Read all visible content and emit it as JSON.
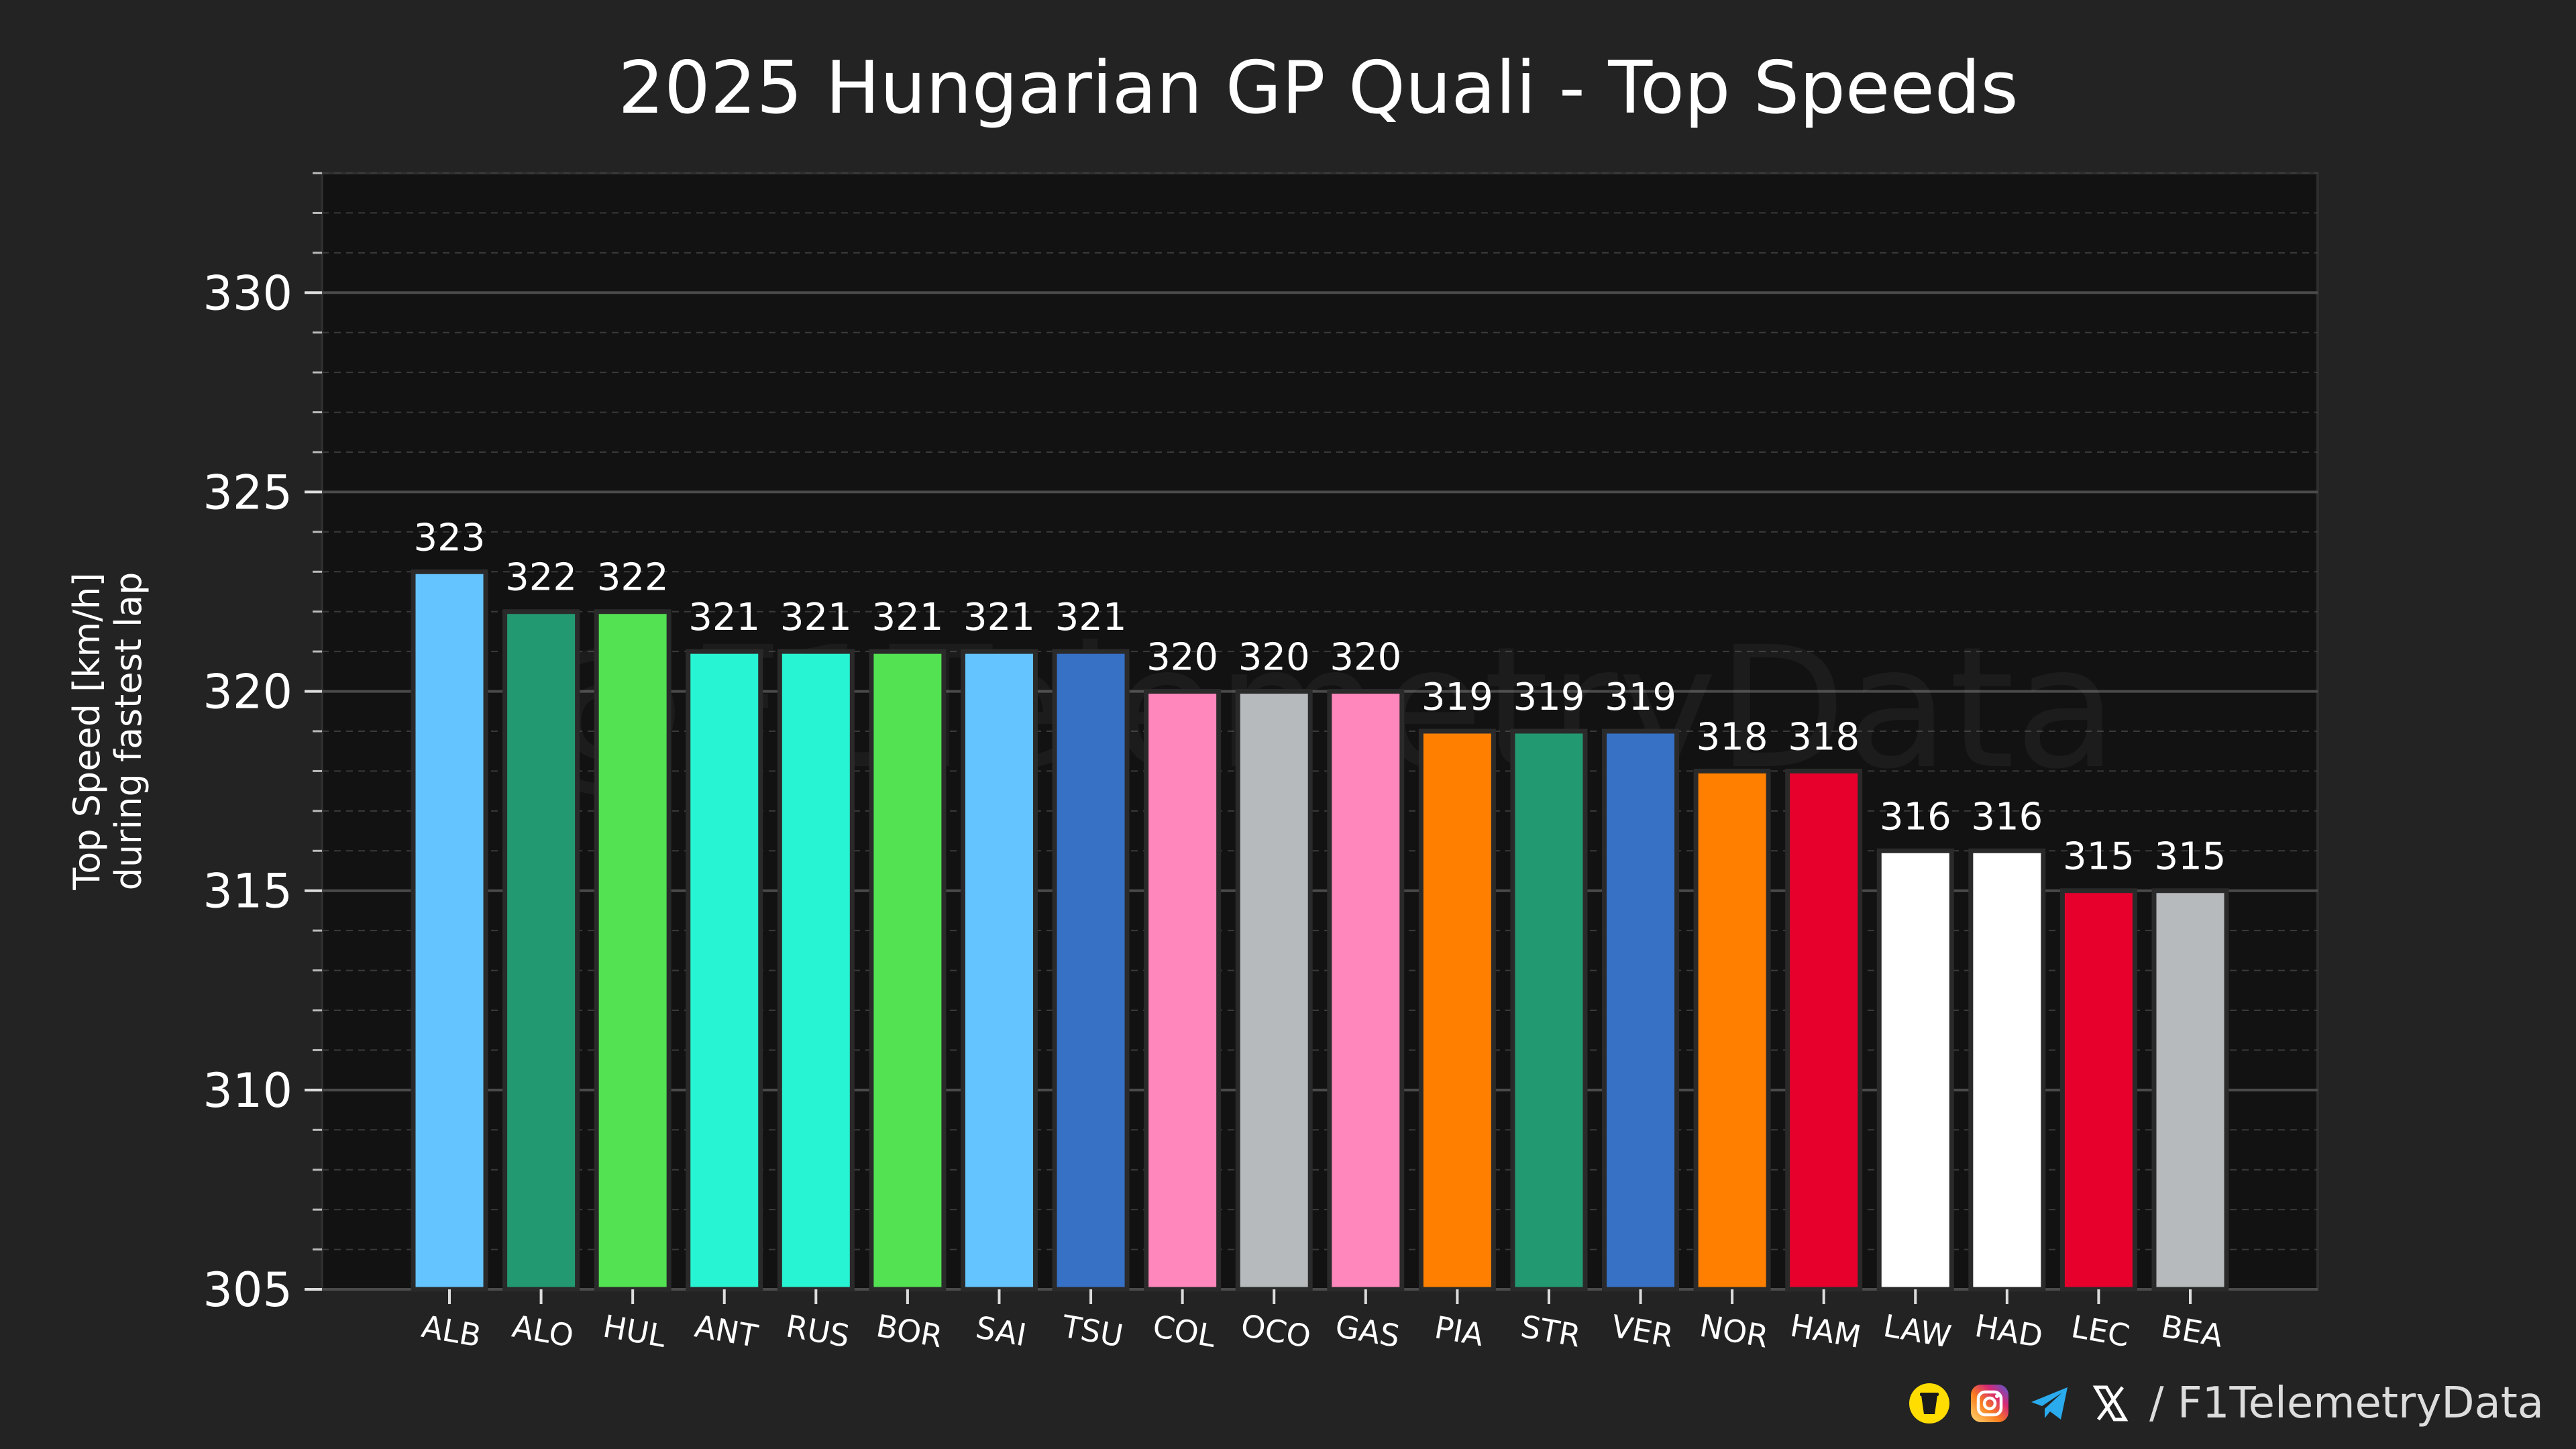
{
  "chart_data": {
    "type": "bar",
    "title": "2025 Hungarian GP Quali - Top Speeds",
    "ylabel_line1": "Top Speed [km/h]",
    "ylabel_line2": "during fastest lap",
    "xlabel": "",
    "ylim": [
      305,
      333
    ],
    "yticks": [
      305,
      310,
      315,
      320,
      325,
      330
    ],
    "grid": true,
    "categories": [
      "ALB",
      "ALO",
      "HUL",
      "ANT",
      "RUS",
      "BOR",
      "SAI",
      "TSU",
      "COL",
      "OCO",
      "GAS",
      "PIA",
      "STR",
      "VER",
      "NOR",
      "HAM",
      "LAW",
      "HAD",
      "LEC",
      "BEA"
    ],
    "values": [
      323,
      322,
      322,
      321,
      321,
      321,
      321,
      321,
      320,
      320,
      320,
      319,
      319,
      319,
      318,
      318,
      316,
      316,
      315,
      315
    ],
    "colors": [
      "#64C4FF",
      "#229971",
      "#52E252",
      "#27F4D2",
      "#27F4D2",
      "#52E252",
      "#64C4FF",
      "#3671C6",
      "#FF87BC",
      "#B6BABD",
      "#FF87BC",
      "#FF8000",
      "#229971",
      "#3671C6",
      "#FF8000",
      "#E8002D",
      "#FFFFFF",
      "#FFFFFF",
      "#E8002D",
      "#B6BABD"
    ]
  },
  "watermark": "@F1TelemetryData",
  "footer": {
    "handle": "/ F1TelemetryData",
    "icons": [
      "buymeacoffee-icon",
      "instagram-icon",
      "telegram-icon",
      "x-icon"
    ]
  }
}
